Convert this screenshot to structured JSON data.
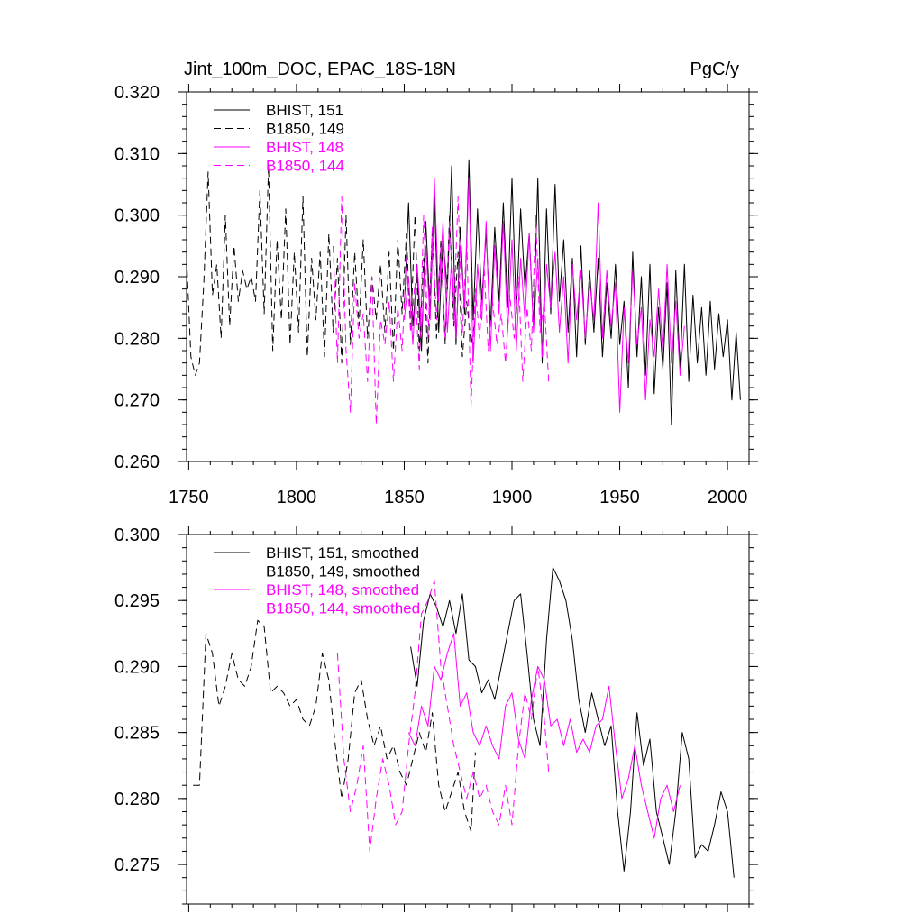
{
  "chart_data": [
    {
      "type": "line",
      "title": "Jint_100m_DOC, EPAC_18S-18N",
      "units": "PgC/y",
      "xlabel": "",
      "ylabel": "",
      "xlim": [
        1749,
        2010
      ],
      "ylim": [
        0.26,
        0.32
      ],
      "xticks": [
        1750,
        1800,
        1850,
        1900,
        1950,
        2000
      ],
      "yticks": [
        0.26,
        0.27,
        0.28,
        0.29,
        0.3,
        0.31,
        0.32
      ],
      "ytick_labels": [
        "0.260",
        "0.270",
        "0.280",
        "0.290",
        "0.300",
        "0.310",
        "0.320"
      ],
      "legend_position": "top-left",
      "series": [
        {
          "name": "BHIST, 151",
          "color": "#000000",
          "dash": "solid",
          "x": [
            1850,
            1852,
            1854,
            1856,
            1858,
            1860,
            1862,
            1864,
            1866,
            1868,
            1870,
            1872,
            1874,
            1876,
            1878,
            1880,
            1882,
            1884,
            1886,
            1888,
            1890,
            1892,
            1894,
            1896,
            1898,
            1900,
            1902,
            1904,
            1906,
            1908,
            1910,
            1912,
            1914,
            1916,
            1918,
            1920,
            1922,
            1924,
            1926,
            1928,
            1930,
            1932,
            1934,
            1936,
            1938,
            1940,
            1942,
            1944,
            1946,
            1948,
            1950,
            1952,
            1954,
            1956,
            1958,
            1960,
            1962,
            1964,
            1966,
            1968,
            1970,
            1972,
            1974,
            1976,
            1978,
            1980,
            1982,
            1984,
            1986,
            1988,
            1990,
            1992,
            1994,
            1996,
            1998,
            2000,
            2002,
            2004,
            2006
          ],
          "values": [
            0.285,
            0.302,
            0.282,
            0.291,
            0.278,
            0.299,
            0.284,
            0.303,
            0.281,
            0.296,
            0.288,
            0.308,
            0.279,
            0.298,
            0.284,
            0.309,
            0.283,
            0.301,
            0.286,
            0.297,
            0.282,
            0.298,
            0.286,
            0.302,
            0.285,
            0.306,
            0.284,
            0.301,
            0.288,
            0.297,
            0.282,
            0.306,
            0.276,
            0.301,
            0.284,
            0.305,
            0.286,
            0.296,
            0.281,
            0.293,
            0.277,
            0.295,
            0.279,
            0.291,
            0.281,
            0.293,
            0.277,
            0.289,
            0.28,
            0.292,
            0.279,
            0.286,
            0.272,
            0.294,
            0.277,
            0.29,
            0.274,
            0.292,
            0.271,
            0.285,
            0.275,
            0.289,
            0.266,
            0.291,
            0.275,
            0.292,
            0.273,
            0.287,
            0.276,
            0.285,
            0.274,
            0.286,
            0.275,
            0.284,
            0.277,
            0.283,
            0.27,
            0.281,
            0.27
          ]
        },
        {
          "name": "B1850, 149",
          "color": "#000000",
          "dash": "dashed",
          "x": [
            1749,
            1751,
            1753,
            1755,
            1757,
            1759,
            1761,
            1763,
            1765,
            1767,
            1769,
            1771,
            1773,
            1775,
            1777,
            1779,
            1781,
            1783,
            1785,
            1787,
            1789,
            1791,
            1793,
            1795,
            1797,
            1799,
            1801,
            1803,
            1805,
            1807,
            1809,
            1811,
            1813,
            1815,
            1817,
            1819,
            1821,
            1823,
            1825,
            1827,
            1829,
            1831,
            1833,
            1835,
            1837,
            1839,
            1841,
            1843,
            1845,
            1847,
            1849,
            1851,
            1853,
            1855,
            1857,
            1859,
            1861,
            1863,
            1865,
            1867,
            1869,
            1871,
            1873,
            1875,
            1877,
            1879,
            1881,
            1883
          ],
          "values": [
            0.293,
            0.277,
            0.274,
            0.276,
            0.289,
            0.307,
            0.287,
            0.292,
            0.28,
            0.3,
            0.282,
            0.295,
            0.286,
            0.291,
            0.288,
            0.29,
            0.286,
            0.304,
            0.284,
            0.308,
            0.278,
            0.296,
            0.283,
            0.301,
            0.279,
            0.294,
            0.281,
            0.303,
            0.277,
            0.293,
            0.283,
            0.294,
            0.277,
            0.297,
            0.281,
            0.293,
            0.276,
            0.3,
            0.279,
            0.294,
            0.282,
            0.296,
            0.28,
            0.29,
            0.283,
            0.292,
            0.281,
            0.294,
            0.278,
            0.296,
            0.284,
            0.297,
            0.281,
            0.3,
            0.278,
            0.293,
            0.276,
            0.298,
            0.28,
            0.296,
            0.279,
            0.3,
            0.282,
            0.294,
            0.277,
            0.286,
            0.279,
            0.283
          ]
        },
        {
          "name": "BHIST, 148",
          "color": "#ff00ff",
          "dash": "solid",
          "x": [
            1850,
            1852,
            1854,
            1856,
            1858,
            1860,
            1862,
            1864,
            1866,
            1868,
            1870,
            1872,
            1874,
            1876,
            1878,
            1880,
            1882,
            1884,
            1886,
            1888,
            1890,
            1892,
            1894,
            1896,
            1898,
            1900,
            1902,
            1904,
            1906,
            1908,
            1910,
            1912,
            1914,
            1916,
            1918,
            1920,
            1922,
            1924,
            1926,
            1928,
            1930,
            1932,
            1934,
            1936,
            1938,
            1940,
            1942,
            1944,
            1946,
            1948,
            1950,
            1952,
            1954,
            1956,
            1958,
            1960,
            1962,
            1964,
            1966,
            1968,
            1970,
            1972,
            1974,
            1976,
            1978,
            1980
          ],
          "values": [
            0.283,
            0.29,
            0.279,
            0.292,
            0.281,
            0.295,
            0.283,
            0.306,
            0.286,
            0.299,
            0.281,
            0.293,
            0.28,
            0.295,
            0.285,
            0.306,
            0.276,
            0.292,
            0.283,
            0.299,
            0.278,
            0.295,
            0.284,
            0.299,
            0.281,
            0.296,
            0.278,
            0.293,
            0.283,
            0.297,
            0.281,
            0.293,
            0.277,
            0.292,
            0.285,
            0.294,
            0.281,
            0.29,
            0.276,
            0.292,
            0.283,
            0.291,
            0.28,
            0.289,
            0.283,
            0.302,
            0.28,
            0.291,
            0.282,
            0.289,
            0.268,
            0.285,
            0.276,
            0.291,
            0.279,
            0.285,
            0.27,
            0.283,
            0.277,
            0.288,
            0.278,
            0.292,
            0.276,
            0.286,
            0.274,
            0.282
          ]
        },
        {
          "name": "B1850, 144",
          "color": "#ff00ff",
          "dash": "dashed",
          "x": [
            1817,
            1819,
            1821,
            1823,
            1825,
            1827,
            1829,
            1831,
            1833,
            1835,
            1837,
            1839,
            1841,
            1843,
            1845,
            1847,
            1849,
            1851,
            1853,
            1855,
            1857,
            1859,
            1861,
            1863,
            1865,
            1867,
            1869,
            1871,
            1873,
            1875,
            1877,
            1879,
            1881,
            1883,
            1885,
            1887,
            1889,
            1891,
            1893,
            1895,
            1897,
            1899,
            1901,
            1903,
            1905,
            1907,
            1909,
            1911,
            1913,
            1915,
            1917
          ],
          "values": [
            0.295,
            0.276,
            0.303,
            0.278,
            0.268,
            0.289,
            0.28,
            0.284,
            0.273,
            0.29,
            0.266,
            0.283,
            0.279,
            0.286,
            0.273,
            0.285,
            0.278,
            0.293,
            0.281,
            0.289,
            0.275,
            0.3,
            0.28,
            0.298,
            0.283,
            0.295,
            0.28,
            0.299,
            0.284,
            0.303,
            0.281,
            0.296,
            0.269,
            0.288,
            0.28,
            0.292,
            0.278,
            0.286,
            0.279,
            0.284,
            0.276,
            0.287,
            0.28,
            0.29,
            0.273,
            0.285,
            0.278,
            0.3,
            0.281,
            0.286,
            0.273
          ]
        }
      ]
    },
    {
      "type": "line",
      "title": "",
      "xlabel": "",
      "ylabel": "",
      "xlim": [
        1749,
        2010
      ],
      "ylim": [
        0.272,
        0.3
      ],
      "xticks": [
        1750,
        1800,
        1850,
        1900,
        1950,
        2000
      ],
      "yticks": [
        0.275,
        0.28,
        0.285,
        0.29,
        0.295,
        0.3
      ],
      "ytick_labels": [
        "0.275",
        "0.280",
        "0.285",
        "0.290",
        "0.295",
        "0.300"
      ],
      "legend_position": "top-left",
      "series": [
        {
          "name": "BHIST, 151, smoothed",
          "color": "#000000",
          "dash": "solid",
          "x": [
            1853,
            1856,
            1859,
            1862,
            1865,
            1868,
            1871,
            1874,
            1877,
            1880,
            1883,
            1886,
            1889,
            1892,
            1895,
            1898,
            1901,
            1904,
            1907,
            1910,
            1913,
            1916,
            1919,
            1922,
            1925,
            1928,
            1931,
            1934,
            1937,
            1940,
            1943,
            1946,
            1949,
            1952,
            1955,
            1958,
            1961,
            1964,
            1967,
            1970,
            1973,
            1976,
            1979,
            1982,
            1985,
            1988,
            1991,
            1994,
            1997,
            2000,
            2003
          ],
          "values": [
            0.2915,
            0.2885,
            0.2935,
            0.2955,
            0.2945,
            0.293,
            0.295,
            0.2925,
            0.2955,
            0.2905,
            0.29,
            0.288,
            0.289,
            0.2875,
            0.29,
            0.2925,
            0.295,
            0.2955,
            0.291,
            0.286,
            0.284,
            0.292,
            0.2975,
            0.2965,
            0.295,
            0.292,
            0.2875,
            0.285,
            0.288,
            0.286,
            0.284,
            0.2855,
            0.279,
            0.2745,
            0.279,
            0.2865,
            0.2825,
            0.2845,
            0.279,
            0.277,
            0.275,
            0.279,
            0.285,
            0.283,
            0.2755,
            0.2765,
            0.276,
            0.278,
            0.2805,
            0.279,
            0.274
          ]
        },
        {
          "name": "B1850, 149, smoothed",
          "color": "#000000",
          "dash": "dashed",
          "x": [
            1752,
            1755,
            1758,
            1761,
            1764,
            1767,
            1770,
            1773,
            1776,
            1779,
            1782,
            1785,
            1788,
            1791,
            1794,
            1797,
            1800,
            1803,
            1806,
            1809,
            1812,
            1815,
            1818,
            1821,
            1824,
            1827,
            1830,
            1833,
            1836,
            1839,
            1842,
            1845,
            1848,
            1851,
            1854,
            1857,
            1860,
            1863,
            1866,
            1869,
            1872,
            1875,
            1878,
            1881,
            1883
          ],
          "values": [
            0.281,
            0.281,
            0.2925,
            0.291,
            0.287,
            0.2885,
            0.291,
            0.289,
            0.2885,
            0.29,
            0.2935,
            0.293,
            0.288,
            0.2885,
            0.288,
            0.287,
            0.2875,
            0.286,
            0.2855,
            0.287,
            0.291,
            0.289,
            0.284,
            0.28,
            0.283,
            0.288,
            0.289,
            0.286,
            0.284,
            0.2855,
            0.283,
            0.284,
            0.282,
            0.281,
            0.283,
            0.285,
            0.2835,
            0.2865,
            0.281,
            0.279,
            0.2805,
            0.282,
            0.279,
            0.2775,
            0.2835
          ]
        },
        {
          "name": "BHIST, 148, smoothed",
          "color": "#ff00ff",
          "dash": "solid",
          "x": [
            1852,
            1855,
            1858,
            1861,
            1864,
            1867,
            1870,
            1873,
            1876,
            1879,
            1882,
            1885,
            1888,
            1891,
            1894,
            1897,
            1900,
            1903,
            1906,
            1909,
            1912,
            1915,
            1918,
            1921,
            1924,
            1927,
            1930,
            1933,
            1936,
            1939,
            1942,
            1945,
            1948,
            1951,
            1954,
            1957,
            1960,
            1963,
            1966,
            1969,
            1972,
            1975,
            1978
          ],
          "values": [
            0.285,
            0.284,
            0.287,
            0.2855,
            0.29,
            0.289,
            0.291,
            0.2925,
            0.287,
            0.288,
            0.285,
            0.284,
            0.2855,
            0.284,
            0.283,
            0.287,
            0.288,
            0.2845,
            0.283,
            0.2875,
            0.29,
            0.289,
            0.2855,
            0.286,
            0.284,
            0.286,
            0.2835,
            0.2845,
            0.2835,
            0.2855,
            0.286,
            0.2885,
            0.284,
            0.28,
            0.2815,
            0.284,
            0.281,
            0.279,
            0.277,
            0.28,
            0.281,
            0.279,
            0.281
          ]
        },
        {
          "name": "B1850, 144, smoothed",
          "color": "#ff00ff",
          "dash": "dashed",
          "x": [
            1819,
            1822,
            1825,
            1828,
            1831,
            1834,
            1837,
            1840,
            1843,
            1846,
            1849,
            1852,
            1855,
            1858,
            1861,
            1864,
            1867,
            1870,
            1873,
            1876,
            1879,
            1882,
            1885,
            1888,
            1891,
            1894,
            1897,
            1900,
            1903,
            1906,
            1909,
            1912,
            1915,
            1917
          ],
          "values": [
            0.291,
            0.283,
            0.279,
            0.281,
            0.284,
            0.276,
            0.28,
            0.283,
            0.281,
            0.278,
            0.279,
            0.284,
            0.288,
            0.294,
            0.295,
            0.2965,
            0.29,
            0.287,
            0.284,
            0.282,
            0.28,
            0.282,
            0.28,
            0.281,
            0.279,
            0.278,
            0.281,
            0.278,
            0.284,
            0.288,
            0.286,
            0.29,
            0.286,
            0.282
          ]
        }
      ]
    }
  ]
}
